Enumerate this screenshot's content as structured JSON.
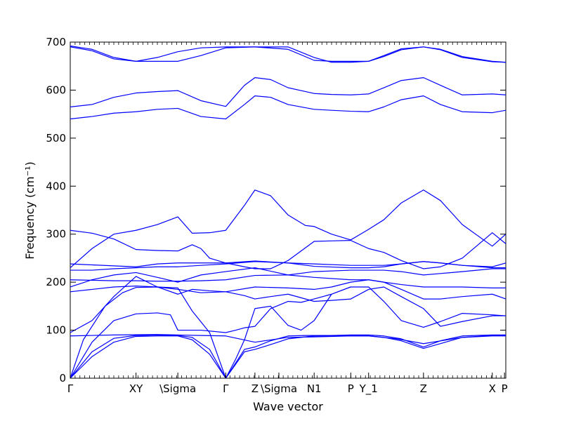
{
  "chart_data": {
    "type": "line",
    "title": "",
    "xlabel": "Wave vector",
    "ylabel": "Frequency (cm⁻¹)",
    "ylim": [
      0,
      700
    ],
    "yticks": [
      0,
      100,
      200,
      300,
      400,
      500,
      600,
      700
    ],
    "xticks": [
      {
        "label": "Γ",
        "x": 0
      },
      {
        "label": "XY",
        "x": 0.151
      },
      {
        "label": "\\Sigma",
        "x": 0.247
      },
      {
        "label": "Γ",
        "x": 0.357
      },
      {
        "label": "Z",
        "x": 0.424
      },
      {
        "label": "\\Sigma",
        "x": 0.479
      },
      {
        "label": "N1",
        "x": 0.56
      },
      {
        "label": "P",
        "x": 0.644
      },
      {
        "label": "Y_1",
        "x": 0.685
      },
      {
        "label": "Z",
        "x": 0.811
      },
      {
        "label": "X",
        "x": 0.969
      },
      {
        "label": "P",
        "x": 0.997
      }
    ],
    "xlim": [
      0,
      1
    ],
    "grid": false,
    "line_color": "#0000ff",
    "series": [
      {
        "x": [
          0,
          0.05,
          0.1,
          0.15,
          0.2,
          0.247,
          0.28,
          0.32,
          0.357,
          0.4,
          0.424,
          0.46,
          0.5,
          0.54,
          0.56,
          0.6,
          0.644,
          0.685,
          0.72,
          0.76,
          0.811,
          0.85,
          0.9,
          0.969,
          1.0
        ],
        "y": [
          0,
          45,
          75,
          87,
          88,
          88,
          80,
          50,
          0,
          55,
          60,
          70,
          82,
          86,
          88,
          88,
          88,
          88,
          85,
          78,
          62,
          72,
          85,
          88,
          88
        ]
      },
      {
        "x": [
          0,
          0.05,
          0.1,
          0.15,
          0.2,
          0.247,
          0.28,
          0.32,
          0.357,
          0.4,
          0.424,
          0.46,
          0.5,
          0.54,
          0.56,
          0.6,
          0.644,
          0.685,
          0.72,
          0.76,
          0.811,
          0.85,
          0.9,
          0.969,
          1.0
        ],
        "y": [
          0,
          55,
          83,
          89,
          90,
          89,
          85,
          60,
          0,
          60,
          65,
          78,
          88,
          89,
          89,
          89,
          90,
          90,
          88,
          82,
          65,
          78,
          88,
          90,
          90
        ]
      },
      {
        "x": [
          0,
          0.1,
          0.2,
          0.247,
          0.3,
          0.357,
          0.424,
          0.5,
          0.56,
          0.644,
          0.685,
          0.75,
          0.811,
          0.9,
          0.969,
          1.0
        ],
        "y": [
          88,
          90,
          91,
          90,
          89,
          88,
          75,
          85,
          86,
          88,
          88,
          82,
          72,
          85,
          89,
          89
        ]
      },
      {
        "x": [
          0,
          0.03,
          0.08,
          0.12,
          0.151,
          0.2,
          0.247,
          0.28,
          0.32,
          0.357
        ],
        "y": [
          0,
          80,
          150,
          178,
          189,
          190,
          188,
          140,
          95,
          0
        ]
      },
      {
        "x": [
          0,
          0.05,
          0.1,
          0.151,
          0.2,
          0.23,
          0.247,
          0.3,
          0.357
        ],
        "y": [
          0,
          75,
          120,
          134,
          136,
          132,
          100,
          100,
          95
        ]
      },
      {
        "x": [
          0,
          0.05,
          0.1,
          0.151,
          0.2,
          0.247,
          0.28,
          0.32,
          0.357
        ],
        "y": [
          95,
          120,
          170,
          212,
          190,
          175,
          185,
          182,
          180
        ]
      },
      {
        "x": [
          0.357,
          0.38,
          0.4,
          0.424,
          0.46,
          0.5,
          0.53,
          0.56,
          0.6,
          0.644
        ],
        "y": [
          0,
          40,
          80,
          145,
          150,
          110,
          100,
          120,
          175,
          190
        ]
      },
      {
        "x": [
          0.357,
          0.38,
          0.4,
          0.424,
          0.46,
          0.5,
          0.53,
          0.56,
          0.6,
          0.644,
          0.685,
          0.72,
          0.76,
          0.811,
          0.85,
          0.9,
          0.969,
          1.0
        ],
        "y": [
          95,
          100,
          105,
          108,
          145,
          160,
          158,
          165,
          175,
          190,
          190,
          160,
          120,
          106,
          118,
          135,
          132,
          130
        ]
      },
      {
        "x": [
          0.357,
          0.4,
          0.424,
          0.46,
          0.5,
          0.56,
          0.6,
          0.644,
          0.685,
          0.72,
          0.76,
          0.811,
          0.85,
          0.9,
          0.969,
          1.0
        ],
        "y": [
          180,
          172,
          165,
          170,
          175,
          160,
          162,
          165,
          185,
          190,
          170,
          145,
          108,
          118,
          130,
          130
        ]
      },
      {
        "x": [
          0,
          0.05,
          0.1,
          0.151,
          0.2,
          0.247,
          0.3,
          0.357,
          0.424,
          0.5,
          0.56,
          0.6,
          0.644,
          0.685,
          0.72,
          0.76,
          0.811,
          0.85,
          0.9,
          0.969,
          1.0
        ],
        "y": [
          180,
          185,
          190,
          192,
          190,
          185,
          178,
          180,
          190,
          188,
          185,
          190,
          200,
          205,
          200,
          185,
          165,
          165,
          170,
          175,
          165
        ]
      },
      {
        "x": [
          0,
          0.05,
          0.1,
          0.151,
          0.2,
          0.247,
          0.3,
          0.357,
          0.424,
          0.5,
          0.56,
          0.644,
          0.685,
          0.72,
          0.76,
          0.811,
          0.85,
          0.9,
          0.969,
          1.0
        ],
        "y": [
          190,
          205,
          215,
          220,
          210,
          200,
          215,
          222,
          230,
          215,
          210,
          205,
          205,
          200,
          195,
          190,
          190,
          190,
          188,
          188
        ]
      },
      {
        "x": [
          0,
          0.05,
          0.1,
          0.151,
          0.2,
          0.247,
          0.3,
          0.357,
          0.424,
          0.5,
          0.56,
          0.644,
          0.685,
          0.72,
          0.76,
          0.811,
          0.85,
          0.9,
          0.969,
          1.0
        ],
        "y": [
          205,
          204,
          203,
          203,
          202,
          202,
          203,
          205,
          214,
          215,
          222,
          225,
          225,
          225,
          222,
          215,
          218,
          222,
          228,
          228
        ]
      },
      {
        "x": [
          0,
          0.05,
          0.1,
          0.151,
          0.2,
          0.247,
          0.3,
          0.357,
          0.424,
          0.5,
          0.56,
          0.644,
          0.685,
          0.72,
          0.76,
          0.811,
          0.85,
          0.9,
          0.969,
          1.0
        ],
        "y": [
          225,
          225,
          228,
          230,
          232,
          232,
          235,
          238,
          243,
          240,
          233,
          230,
          230,
          232,
          238,
          243,
          240,
          235,
          230,
          230
        ]
      },
      {
        "x": [
          0,
          0.05,
          0.1,
          0.151,
          0.2,
          0.247,
          0.3,
          0.357,
          0.424,
          0.5,
          0.56,
          0.644,
          0.685,
          0.72,
          0.76,
          0.811,
          0.85,
          0.9,
          0.969,
          1.0
        ],
        "y": [
          238,
          236,
          234,
          232,
          238,
          240,
          240,
          240,
          244,
          240,
          238,
          235,
          235,
          235,
          238,
          243,
          240,
          235,
          232,
          240
        ]
      },
      {
        "x": [
          0,
          0.05,
          0.1,
          0.151,
          0.2,
          0.247,
          0.28,
          0.32,
          0.357,
          0.4,
          0.424,
          0.46,
          0.5,
          0.54,
          0.56,
          0.6,
          0.644,
          0.685,
          0.72,
          0.76,
          0.811,
          0.85,
          0.9,
          0.969,
          1.0
        ],
        "y": [
          230,
          270,
          300,
          308,
          320,
          336,
          302,
          303,
          308,
          360,
          392,
          380,
          340,
          318,
          316,
          300,
          288,
          310,
          330,
          365,
          392,
          370,
          320,
          275,
          300
        ]
      },
      {
        "x": [
          0,
          0.05,
          0.1,
          0.151,
          0.2,
          0.247,
          0.28,
          0.3,
          0.32,
          0.357,
          0.4,
          0.424,
          0.46,
          0.5,
          0.56,
          0.6,
          0.644,
          0.685,
          0.72,
          0.76,
          0.811,
          0.85,
          0.9,
          0.969,
          1.0
        ],
        "y": [
          308,
          302,
          290,
          268,
          266,
          265,
          278,
          270,
          250,
          240,
          232,
          228,
          228,
          245,
          285,
          286,
          287,
          270,
          262,
          245,
          228,
          232,
          250,
          303,
          280
        ]
      },
      {
        "x": [
          0,
          0.05,
          0.1,
          0.151,
          0.2,
          0.247,
          0.3,
          0.357,
          0.4,
          0.424,
          0.46,
          0.5,
          0.56,
          0.6,
          0.644,
          0.685,
          0.72,
          0.76,
          0.811,
          0.85,
          0.9,
          0.969,
          1.0
        ],
        "y": [
          540,
          545,
          552,
          555,
          560,
          562,
          545,
          540,
          570,
          588,
          585,
          570,
          560,
          558,
          556,
          555,
          565,
          580,
          588,
          570,
          555,
          553,
          558
        ]
      },
      {
        "x": [
          0,
          0.05,
          0.1,
          0.151,
          0.2,
          0.247,
          0.3,
          0.357,
          0.4,
          0.424,
          0.46,
          0.5,
          0.56,
          0.6,
          0.644,
          0.685,
          0.72,
          0.76,
          0.811,
          0.85,
          0.9,
          0.969,
          1.0
        ],
        "y": [
          565,
          570,
          585,
          594,
          597,
          599,
          578,
          566,
          610,
          626,
          622,
          605,
          593,
          591,
          590,
          592,
          605,
          620,
          626,
          610,
          590,
          592,
          590
        ]
      },
      {
        "x": [
          0,
          0.05,
          0.1,
          0.151,
          0.2,
          0.247,
          0.3,
          0.357,
          0.424,
          0.5,
          0.56,
          0.6,
          0.644,
          0.685,
          0.72,
          0.76,
          0.811,
          0.85,
          0.9,
          0.969,
          1.0
        ],
        "y": [
          692,
          685,
          668,
          660,
          668,
          680,
          688,
          690,
          690,
          685,
          662,
          660,
          660,
          660,
          670,
          684,
          690,
          685,
          670,
          660,
          658
        ]
      },
      {
        "x": [
          0,
          0.05,
          0.1,
          0.151,
          0.2,
          0.247,
          0.3,
          0.357,
          0.424,
          0.5,
          0.56,
          0.6,
          0.644,
          0.685,
          0.72,
          0.76,
          0.811,
          0.85,
          0.9,
          0.969,
          1.0
        ],
        "y": [
          690,
          682,
          665,
          660,
          660,
          660,
          672,
          688,
          690,
          690,
          668,
          658,
          658,
          660,
          672,
          686,
          690,
          684,
          668,
          659,
          658
        ]
      }
    ]
  }
}
